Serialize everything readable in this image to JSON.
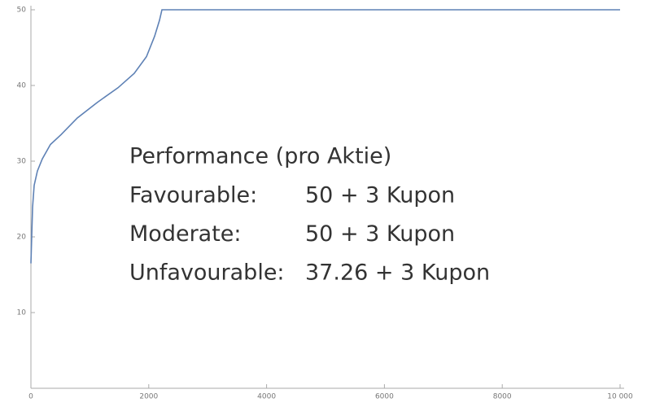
{
  "chart_data": {
    "type": "line",
    "x": [
      0,
      28,
      55,
      110,
      193,
      331,
      511,
      787,
      1133,
      1478,
      1754,
      1961,
      2099,
      2182,
      2224,
      10000
    ],
    "values": [
      16.5,
      23.9,
      26.8,
      28.7,
      30.3,
      32.2,
      33.5,
      35.7,
      37.8,
      39.7,
      41.6,
      43.8,
      46.5,
      48.6,
      50,
      50
    ],
    "color": "#5e81b5",
    "xlim": [
      0,
      10000
    ],
    "ylim": [
      0,
      50
    ],
    "xticks": [
      0,
      2000,
      4000,
      6000,
      8000,
      {
        "value": 10000,
        "label": "10 000"
      }
    ],
    "yticks": [
      10,
      20,
      30,
      40,
      50
    ],
    "annotation": {
      "title": "Performance (pro Aktie)",
      "rows": [
        [
          "Favourable:",
          "50 + 3 Kupon"
        ],
        [
          "Moderate:",
          "50 + 3 Kupon"
        ],
        [
          "Unfavourable:",
          "37.26 + 3 Kupon"
        ]
      ]
    }
  }
}
